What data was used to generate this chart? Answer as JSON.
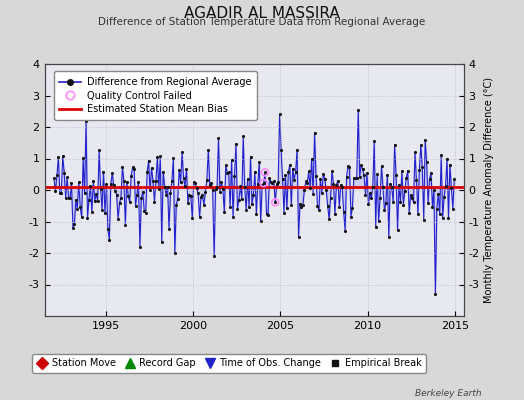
{
  "title": "AGADIR AL MASSIRA",
  "subtitle": "Difference of Station Temperature Data from Regional Average",
  "ylabel": "Monthly Temperature Anomaly Difference (°C)",
  "xlabel_years": [
    1995,
    2000,
    2005,
    2010,
    2015
  ],
  "ylim": [
    -4,
    4
  ],
  "yticks": [
    -3,
    -2,
    -1,
    0,
    1,
    2,
    3,
    4
  ],
  "xlim_start": 1991.5,
  "xlim_end": 2015.5,
  "bias_line": 0.1,
  "background_color": "#d8d8d8",
  "plot_bg_color": "#e8e8f0",
  "line_color": "#2222cc",
  "line_fill_color": "#aaaaee",
  "dot_color": "#111111",
  "bias_color": "#dd0000",
  "qc_color": "#ff88ff",
  "legend_items": [
    {
      "label": "Difference from Regional Average"
    },
    {
      "label": "Quality Control Failed"
    },
    {
      "label": "Estimated Station Mean Bias"
    }
  ],
  "bottom_legend": [
    {
      "label": "Station Move",
      "color": "#cc0000",
      "marker": "D"
    },
    {
      "label": "Record Gap",
      "color": "#008800",
      "marker": "^"
    },
    {
      "label": "Time of Obs. Change",
      "color": "#2222cc",
      "marker": "v"
    },
    {
      "label": "Empirical Break",
      "color": "#111111",
      "marker": "s"
    }
  ],
  "watermark": "Berkeley Earth",
  "seed": 42,
  "start_year": 1992,
  "end_year": 2015,
  "months": 12,
  "qc_indices": [
    144,
    145,
    152
  ],
  "extreme_overrides": {
    "22": 2.2,
    "38": -1.6,
    "59": -1.8,
    "83": -2.0,
    "88": 1.2,
    "110": -2.1,
    "130": 1.7,
    "155": 2.4,
    "168": -1.5,
    "200": -1.3,
    "230": -1.5,
    "255": 1.6,
    "262": -3.3
  }
}
